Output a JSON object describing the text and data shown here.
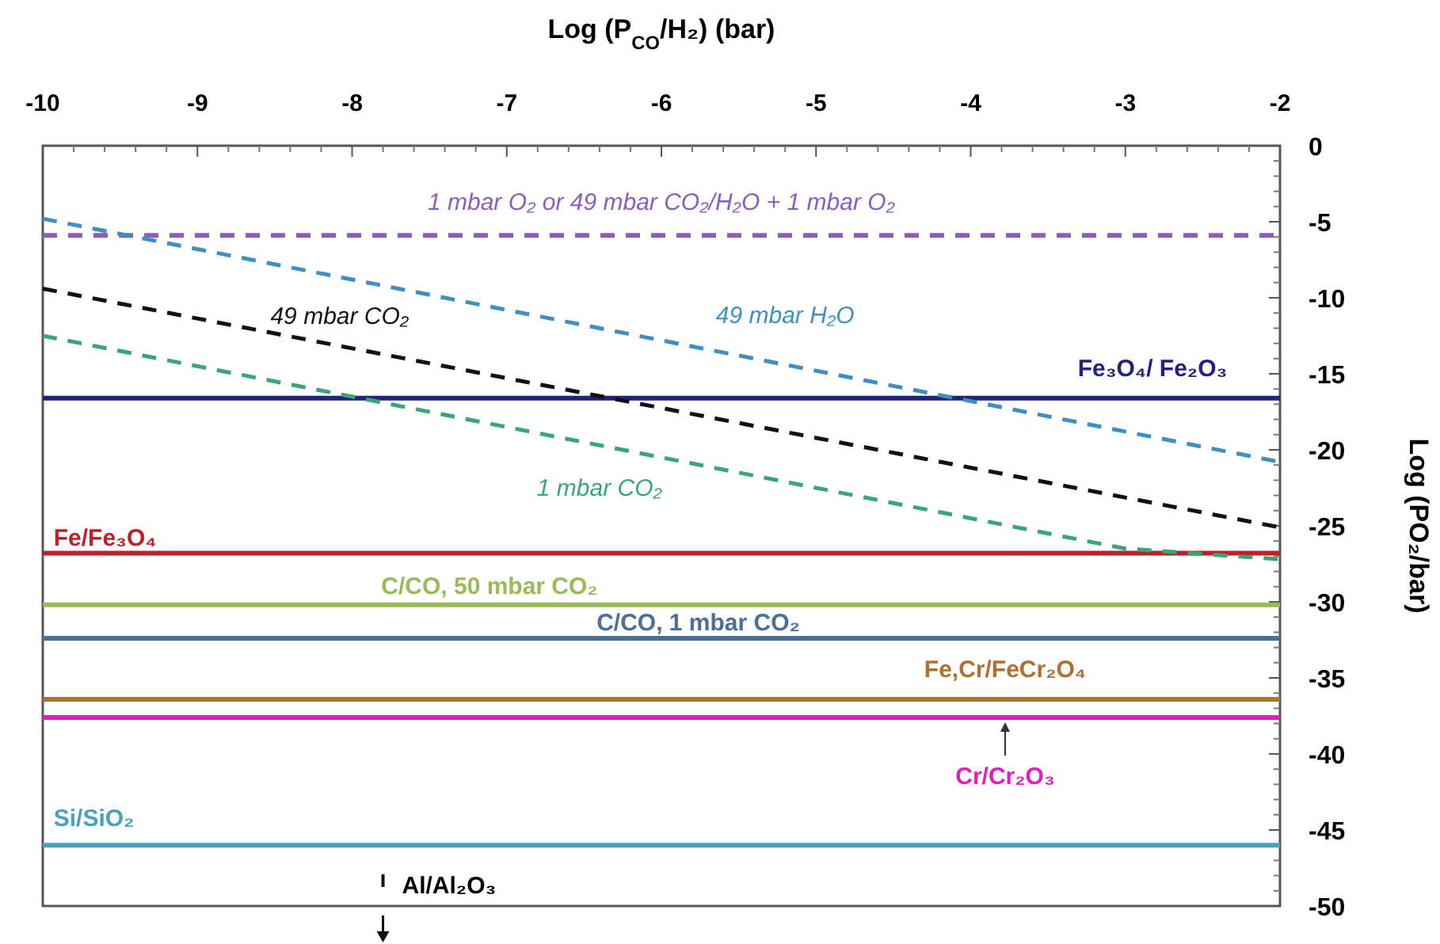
{
  "chart_data": {
    "type": "line",
    "xlabel": "Log (P$_{CO}$/H₂) (bar)",
    "ylabel": "Log (PO₂/bar)",
    "xlim": [
      -10,
      -2
    ],
    "xticks": [
      -10,
      -9,
      -8,
      -7,
      -6,
      -5,
      -4,
      -3,
      -2
    ],
    "ylim": [
      -50,
      0
    ],
    "yticks": [
      0,
      -5,
      -10,
      -15,
      -20,
      -25,
      -30,
      -35,
      -40,
      -45,
      -50
    ],
    "grid": false,
    "line_style": "dashed",
    "marker": "none",
    "series": [
      {
        "name": "49 mbar H₂O",
        "color": "#3d8fc4",
        "x": [
          -10,
          -2
        ],
        "values": [
          -4.8,
          -20.8
        ]
      },
      {
        "name": "49 mbar CO₂",
        "color": "#111111",
        "x": [
          -10,
          -2
        ],
        "values": [
          -9.4,
          -25.1
        ]
      },
      {
        "name": "1 mbar CO₂",
        "color": "#3aa57a",
        "x": [
          -10,
          -3,
          -2
        ],
        "values": [
          -12.5,
          -26.5,
          -27.2
        ]
      }
    ],
    "ref_lines": [
      {
        "axis": "y",
        "value": -5.9,
        "label": "1 mbar O₂ or 49 mbar CO₂/H₂O + 1 mbar O₂",
        "color": "#8c5cc0",
        "line_style": "dashed"
      },
      {
        "axis": "y",
        "value": -16.6,
        "label": "Fe₃O₄/ Fe₂O₃",
        "color": "#23237f",
        "line_style": "solid"
      },
      {
        "axis": "y",
        "value": -26.8,
        "label": "Fe/Fe₃O₄",
        "color": "#c0202a",
        "line_style": "solid"
      },
      {
        "axis": "y",
        "value": -30.2,
        "label": "C/CO, 50 mbar CO₂",
        "color": "#9bbb59",
        "line_style": "solid"
      },
      {
        "axis": "y",
        "value": -32.4,
        "label": "C/CO, 1 mbar CO₂",
        "color": "#4a6f9a",
        "line_style": "solid"
      },
      {
        "axis": "y",
        "value": -36.4,
        "label": "Fe,Cr/FeCr₂O₄",
        "color": "#b0702e",
        "line_style": "solid"
      },
      {
        "axis": "y",
        "value": -37.6,
        "label": "Cr/Cr₂O₃",
        "color": "#e020b8",
        "line_style": "solid"
      },
      {
        "axis": "y",
        "value": -46,
        "label": "Si/SiO₂",
        "color": "#4aa0c0",
        "line_style": "solid"
      }
    ],
    "annotations": [
      "Al/Al₂O₃"
    ]
  }
}
